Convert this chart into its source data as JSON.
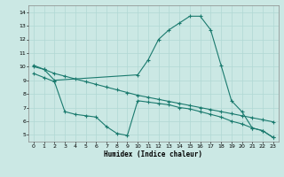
{
  "xlabel": "Humidex (Indice chaleur)",
  "bg_color": "#cbe8e4",
  "grid_color": "#b0d8d4",
  "line_color": "#1a7a6e",
  "xlim": [
    -0.5,
    23.5
  ],
  "ylim": [
    4.5,
    14.5
  ],
  "xticks": [
    0,
    1,
    2,
    3,
    4,
    5,
    6,
    7,
    8,
    9,
    10,
    11,
    12,
    13,
    14,
    15,
    16,
    17,
    18,
    19,
    20,
    21,
    22,
    23
  ],
  "yticks": [
    5,
    6,
    7,
    8,
    9,
    10,
    11,
    12,
    13,
    14
  ],
  "line1_x": [
    0,
    1,
    2,
    10,
    11,
    12,
    13,
    14,
    15,
    16,
    17,
    18,
    19,
    20,
    21,
    22,
    23
  ],
  "line1_y": [
    10.1,
    9.8,
    9.0,
    9.4,
    10.5,
    12.0,
    12.7,
    13.2,
    13.7,
    13.7,
    12.7,
    10.1,
    7.5,
    6.7,
    5.5,
    5.3,
    4.8
  ],
  "line2_x": [
    0,
    1,
    2,
    3,
    4,
    5,
    6,
    7,
    8,
    9,
    10,
    11,
    12,
    13,
    14,
    15,
    16,
    17,
    18,
    19,
    20,
    21,
    22,
    23
  ],
  "line2_y": [
    10.0,
    9.8,
    9.5,
    9.3,
    9.1,
    8.9,
    8.7,
    8.5,
    8.3,
    8.1,
    7.9,
    7.75,
    7.6,
    7.45,
    7.3,
    7.15,
    7.0,
    6.85,
    6.7,
    6.55,
    6.4,
    6.25,
    6.1,
    5.95
  ],
  "line3_x": [
    0,
    1,
    2,
    3,
    4,
    5,
    6,
    7,
    8,
    9,
    10,
    11,
    12,
    13,
    14,
    15,
    16,
    17,
    18,
    19,
    20,
    21,
    22,
    23
  ],
  "line3_y": [
    9.5,
    9.2,
    8.9,
    6.7,
    6.5,
    6.4,
    6.3,
    5.6,
    5.1,
    4.95,
    7.5,
    7.4,
    7.3,
    7.2,
    7.0,
    6.9,
    6.7,
    6.5,
    6.3,
    6.0,
    5.8,
    5.5,
    5.3,
    4.8
  ]
}
